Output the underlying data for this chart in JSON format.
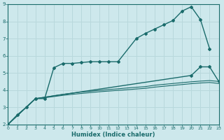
{
  "xlabel": "Humidex (Indice chaleur)",
  "background_color": "#cde8ec",
  "grid_color": "#b8d8dc",
  "line_color": "#1a6b6b",
  "xlim": [
    0,
    23
  ],
  "ylim": [
    2,
    9
  ],
  "xticks": [
    0,
    1,
    2,
    3,
    4,
    5,
    6,
    7,
    8,
    9,
    10,
    11,
    12,
    13,
    14,
    15,
    16,
    17,
    18,
    19,
    20,
    21,
    22,
    23
  ],
  "yticks": [
    2,
    3,
    4,
    5,
    6,
    7,
    8,
    9
  ],
  "curve_main": {
    "x": [
      0,
      1,
      2,
      3,
      4,
      5,
      6,
      7,
      8,
      9,
      10,
      11,
      12,
      14,
      15,
      16,
      17,
      18,
      19,
      20,
      21,
      22
    ],
    "y": [
      2.0,
      2.55,
      3.0,
      3.5,
      3.5,
      5.3,
      5.55,
      5.55,
      5.6,
      5.65,
      5.65,
      5.65,
      5.65,
      7.0,
      7.3,
      7.55,
      7.8,
      8.05,
      8.6,
      8.85,
      8.1,
      6.4
    ]
  },
  "curve_mid": {
    "x": [
      0,
      3,
      20,
      21,
      22,
      23
    ],
    "y": [
      2.0,
      3.5,
      4.85,
      5.35,
      5.35,
      4.5
    ]
  },
  "curve_lo1": {
    "x": [
      0,
      2,
      3,
      4,
      5,
      6,
      7,
      8,
      9,
      10,
      11,
      12,
      13,
      14,
      15,
      16,
      17,
      18,
      19,
      20,
      21,
      22,
      23
    ],
    "y": [
      2.0,
      3.0,
      3.5,
      3.58,
      3.67,
      3.75,
      3.82,
      3.88,
      3.93,
      3.98,
      4.03,
      4.07,
      4.12,
      4.16,
      4.2,
      4.28,
      4.33,
      4.38,
      4.43,
      4.48,
      4.52,
      4.55,
      4.5
    ]
  },
  "curve_lo2": {
    "x": [
      0,
      2,
      3,
      4,
      5,
      6,
      7,
      8,
      9,
      10,
      11,
      12,
      13,
      14,
      15,
      16,
      17,
      18,
      19,
      20,
      21,
      22,
      23
    ],
    "y": [
      2.0,
      3.0,
      3.5,
      3.55,
      3.62,
      3.69,
      3.75,
      3.8,
      3.85,
      3.9,
      3.94,
      3.98,
      4.02,
      4.06,
      4.1,
      4.17,
      4.22,
      4.27,
      4.32,
      4.37,
      4.41,
      4.44,
      4.38
    ]
  }
}
